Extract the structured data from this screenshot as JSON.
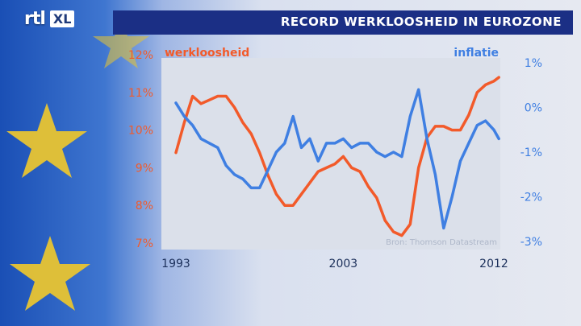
{
  "header": {
    "logo_rtl": "rtl",
    "logo_xl": "XL",
    "title": "RECORD WERKLOOSHEID IN EUROZONE"
  },
  "colors": {
    "unemployment": "#f25a2a",
    "inflation": "#3f7fe2",
    "title_bar": "#1b2f85",
    "plot_bg": "#dbe0ea"
  },
  "chart_data": {
    "type": "line",
    "title": "RECORD WERKLOOSHEID IN EUROZONE",
    "source": "Bron: Thomson Datastream",
    "x_ticks": [
      "1993",
      "2003",
      "2012"
    ],
    "x_range": [
      1993,
      2012
    ],
    "left_axis": {
      "ticks": [
        "12%",
        "11%",
        "10%",
        "9%",
        "8%",
        "7%"
      ],
      "range": [
        7,
        12
      ]
    },
    "right_axis": {
      "ticks": [
        "1%",
        "0%",
        "-1%",
        "-2%",
        "-3%"
      ],
      "range": [
        -3,
        1
      ]
    },
    "grid": false,
    "series": [
      {
        "name": "werkloosheid",
        "axis": "left",
        "color": "#f25a2a",
        "x": [
          1993.0,
          1993.5,
          1994.0,
          1994.5,
          1995.0,
          1995.5,
          1996.0,
          1996.5,
          1997.0,
          1997.5,
          1998.0,
          1998.5,
          1999.0,
          1999.5,
          2000.0,
          2000.5,
          2001.0,
          2001.5,
          2002.0,
          2002.5,
          2003.0,
          2003.5,
          2004.0,
          2004.5,
          2005.0,
          2005.5,
          2006.0,
          2006.5,
          2007.0,
          2007.5,
          2008.0,
          2008.5,
          2009.0,
          2009.5,
          2010.0,
          2010.5,
          2011.0,
          2011.5,
          2012.0,
          2012.3
        ],
        "y": [
          9.4,
          10.2,
          10.9,
          10.7,
          10.8,
          10.9,
          10.9,
          10.6,
          10.2,
          9.9,
          9.4,
          8.8,
          8.3,
          8.0,
          8.0,
          8.3,
          8.6,
          8.9,
          9.0,
          9.1,
          9.3,
          9.0,
          8.9,
          8.5,
          8.2,
          7.6,
          7.3,
          7.2,
          7.5,
          9.0,
          9.8,
          10.1,
          10.1,
          10.0,
          10.0,
          10.4,
          11.0,
          11.2,
          11.3,
          11.4
        ]
      },
      {
        "name": "inflatie",
        "axis": "right",
        "color": "#3f7fe2",
        "x": [
          1993.0,
          1993.5,
          1994.0,
          1994.5,
          1995.0,
          1995.5,
          1996.0,
          1996.5,
          1997.0,
          1997.5,
          1998.0,
          1998.5,
          1999.0,
          1999.5,
          2000.0,
          2000.5,
          2001.0,
          2001.5,
          2002.0,
          2002.5,
          2003.0,
          2003.5,
          2004.0,
          2004.5,
          2005.0,
          2005.5,
          2006.0,
          2006.5,
          2007.0,
          2007.5,
          2008.0,
          2008.5,
          2009.0,
          2009.5,
          2010.0,
          2010.5,
          2011.0,
          2011.5,
          2012.0,
          2012.3
        ],
        "y": [
          0.1,
          -0.2,
          -0.4,
          -0.7,
          -0.8,
          -0.9,
          -1.3,
          -1.5,
          -1.6,
          -1.8,
          -1.8,
          -1.4,
          -1.0,
          -0.8,
          -0.2,
          -0.9,
          -0.7,
          -1.2,
          -0.8,
          -0.8,
          -0.7,
          -0.9,
          -0.8,
          -0.8,
          -1.0,
          -1.1,
          -1.0,
          -1.1,
          -0.2,
          0.4,
          -0.7,
          -1.5,
          -2.7,
          -2.0,
          -1.2,
          -0.8,
          -0.4,
          -0.3,
          -0.5,
          -0.7
        ]
      }
    ]
  }
}
